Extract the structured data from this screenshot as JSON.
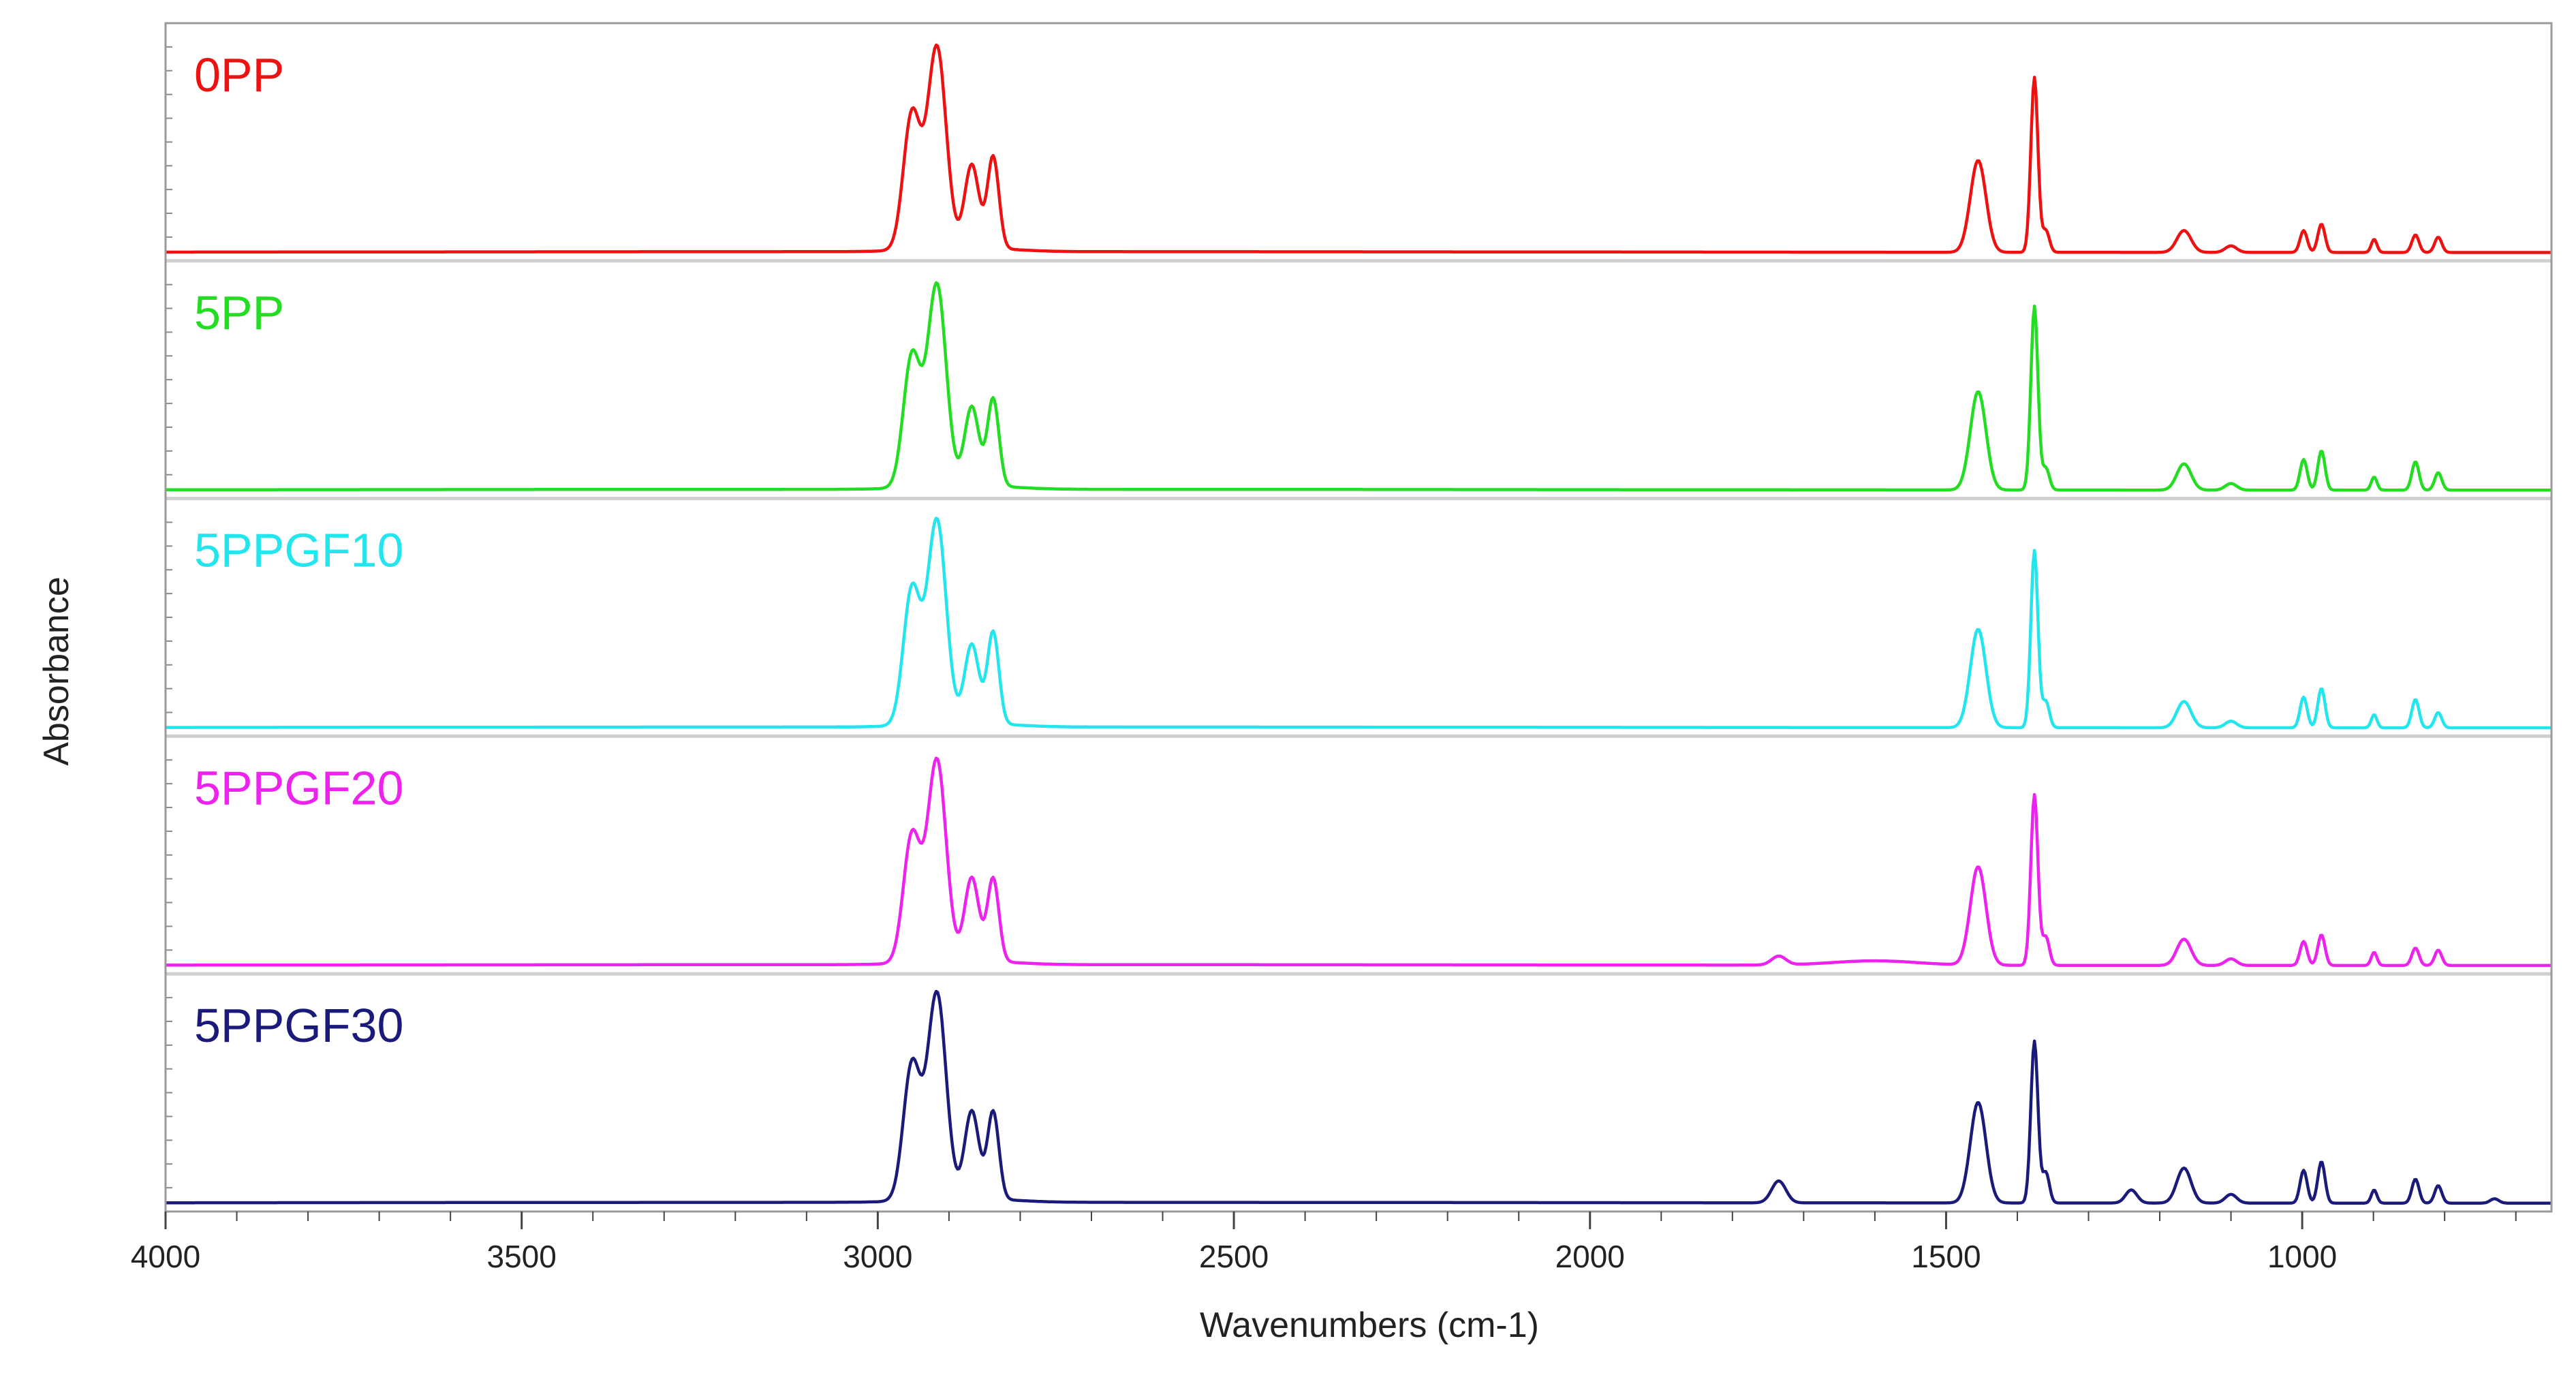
{
  "chart_data": {
    "type": "line",
    "title": "",
    "xlabel": "Wavenumbers (cm-1)",
    "ylabel": "Absorbance",
    "xlim": [
      4000,
      650
    ],
    "x_reversed": true,
    "x_ticks": [
      4000,
      3500,
      3000,
      2500,
      2000,
      1500,
      1000
    ],
    "x_tick_labels": [
      "4000",
      "3500",
      "3000",
      "2500",
      "2000",
      "1500",
      "1000"
    ],
    "layout": "stacked-panels",
    "grid": false,
    "legend": "none; each series labelled inside the top-left of its panel",
    "series": [
      {
        "name": "0PP",
        "color": "#ee1111",
        "baseline": 0.02,
        "peaks": [
          [
            2952,
            0.62,
            12
          ],
          [
            2917,
            0.92,
            13
          ],
          [
            2868,
            0.38,
            10
          ],
          [
            2838,
            0.42,
            8
          ],
          [
            1455,
            0.42,
            11
          ],
          [
            1376,
            0.8,
            5
          ],
          [
            1360,
            0.1,
            5
          ],
          [
            1166,
            0.1,
            10
          ],
          [
            1100,
            0.03,
            8
          ],
          [
            998,
            0.1,
            5
          ],
          [
            973,
            0.13,
            5
          ],
          [
            899,
            0.06,
            4
          ],
          [
            841,
            0.08,
            5
          ],
          [
            809,
            0.07,
            5
          ],
          [
            1735,
            0.0,
            10
          ]
        ]
      },
      {
        "name": "5PP",
        "color": "#22dd22",
        "baseline": 0.02,
        "peaks": [
          [
            2952,
            0.6,
            12
          ],
          [
            2917,
            0.92,
            13
          ],
          [
            2868,
            0.36,
            10
          ],
          [
            2838,
            0.4,
            8
          ],
          [
            1455,
            0.45,
            11
          ],
          [
            1376,
            0.84,
            5
          ],
          [
            1360,
            0.1,
            5
          ],
          [
            1166,
            0.12,
            10
          ],
          [
            1100,
            0.03,
            8
          ],
          [
            998,
            0.14,
            5
          ],
          [
            973,
            0.18,
            5
          ],
          [
            899,
            0.06,
            4
          ],
          [
            841,
            0.13,
            5
          ],
          [
            809,
            0.08,
            5
          ],
          [
            1735,
            0.0,
            10
          ]
        ]
      },
      {
        "name": "5PPGF10",
        "color": "#22e5ee",
        "baseline": 0.02,
        "peaks": [
          [
            2952,
            0.62,
            12
          ],
          [
            2917,
            0.93,
            13
          ],
          [
            2868,
            0.36,
            10
          ],
          [
            2838,
            0.42,
            8
          ],
          [
            1455,
            0.45,
            11
          ],
          [
            1376,
            0.81,
            5
          ],
          [
            1360,
            0.12,
            5
          ],
          [
            1166,
            0.12,
            10
          ],
          [
            1100,
            0.03,
            8
          ],
          [
            998,
            0.14,
            5
          ],
          [
            973,
            0.18,
            5
          ],
          [
            899,
            0.06,
            4
          ],
          [
            841,
            0.13,
            5
          ],
          [
            809,
            0.07,
            5
          ],
          [
            1735,
            0.0,
            10
          ]
        ]
      },
      {
        "name": "5PPGF20",
        "color": "#ee22ee",
        "baseline": 0.02,
        "peaks": [
          [
            2952,
            0.58,
            12
          ],
          [
            2917,
            0.92,
            13
          ],
          [
            2868,
            0.38,
            10
          ],
          [
            2838,
            0.38,
            8
          ],
          [
            1455,
            0.45,
            11
          ],
          [
            1376,
            0.78,
            5
          ],
          [
            1360,
            0.13,
            5
          ],
          [
            1166,
            0.12,
            10
          ],
          [
            1100,
            0.03,
            8
          ],
          [
            998,
            0.11,
            5
          ],
          [
            973,
            0.14,
            5
          ],
          [
            899,
            0.06,
            4
          ],
          [
            841,
            0.08,
            5
          ],
          [
            809,
            0.07,
            5
          ],
          [
            1735,
            0.04,
            10
          ],
          [
            1600,
            0.02,
            60
          ]
        ]
      },
      {
        "name": "5PPGF30",
        "color": "#1a1a7a",
        "baseline": 0.02,
        "peaks": [
          [
            2952,
            0.62,
            12
          ],
          [
            2917,
            0.94,
            13
          ],
          [
            2868,
            0.4,
            10
          ],
          [
            2838,
            0.4,
            8
          ],
          [
            1455,
            0.46,
            11
          ],
          [
            1376,
            0.74,
            5
          ],
          [
            1360,
            0.14,
            5
          ],
          [
            1166,
            0.16,
            10
          ],
          [
            1100,
            0.04,
            8
          ],
          [
            1240,
            0.06,
            8
          ],
          [
            998,
            0.15,
            5
          ],
          [
            973,
            0.19,
            5
          ],
          [
            899,
            0.06,
            4
          ],
          [
            841,
            0.11,
            5
          ],
          [
            809,
            0.08,
            5
          ],
          [
            1735,
            0.1,
            10
          ],
          [
            730,
            0.02,
            6
          ]
        ]
      }
    ]
  }
}
